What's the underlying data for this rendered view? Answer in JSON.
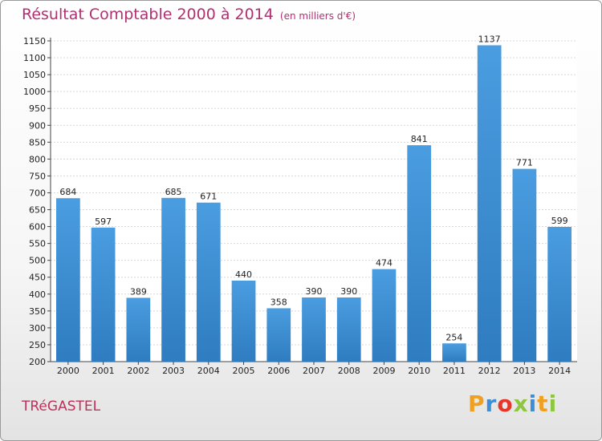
{
  "title": "Résultat Comptable 2000 à 2014",
  "subtitle": "(en milliers d'€)",
  "commune": "TRéGASTEL",
  "logo": {
    "letters": [
      "P",
      "r",
      "o",
      "x",
      "i",
      "t",
      "i"
    ],
    "colors": [
      "#f0a020",
      "#3b8fd8",
      "#e8352a",
      "#8dc63f",
      "#3b8fd8",
      "#f0a020",
      "#8dc63f"
    ]
  },
  "colors": {
    "bar": "#4a9de0",
    "bar_dark": "#2f7cc0",
    "title": "#b03070",
    "grid": "#d8d8d8"
  },
  "chart_data": {
    "type": "bar",
    "categories": [
      "2000",
      "2001",
      "2002",
      "2003",
      "2004",
      "2005",
      "2006",
      "2007",
      "2008",
      "2009",
      "2010",
      "2011",
      "2012",
      "2013",
      "2014"
    ],
    "values": [
      684,
      597,
      389,
      685,
      671,
      440,
      358,
      390,
      390,
      474,
      841,
      254,
      1137,
      771,
      599
    ],
    "ylim": [
      200,
      1150
    ],
    "yticks": [
      200,
      250,
      300,
      350,
      400,
      450,
      500,
      550,
      600,
      650,
      700,
      750,
      800,
      850,
      900,
      950,
      1000,
      1050,
      1100,
      1150
    ],
    "grid": true,
    "xlabel": "",
    "ylabel": ""
  }
}
